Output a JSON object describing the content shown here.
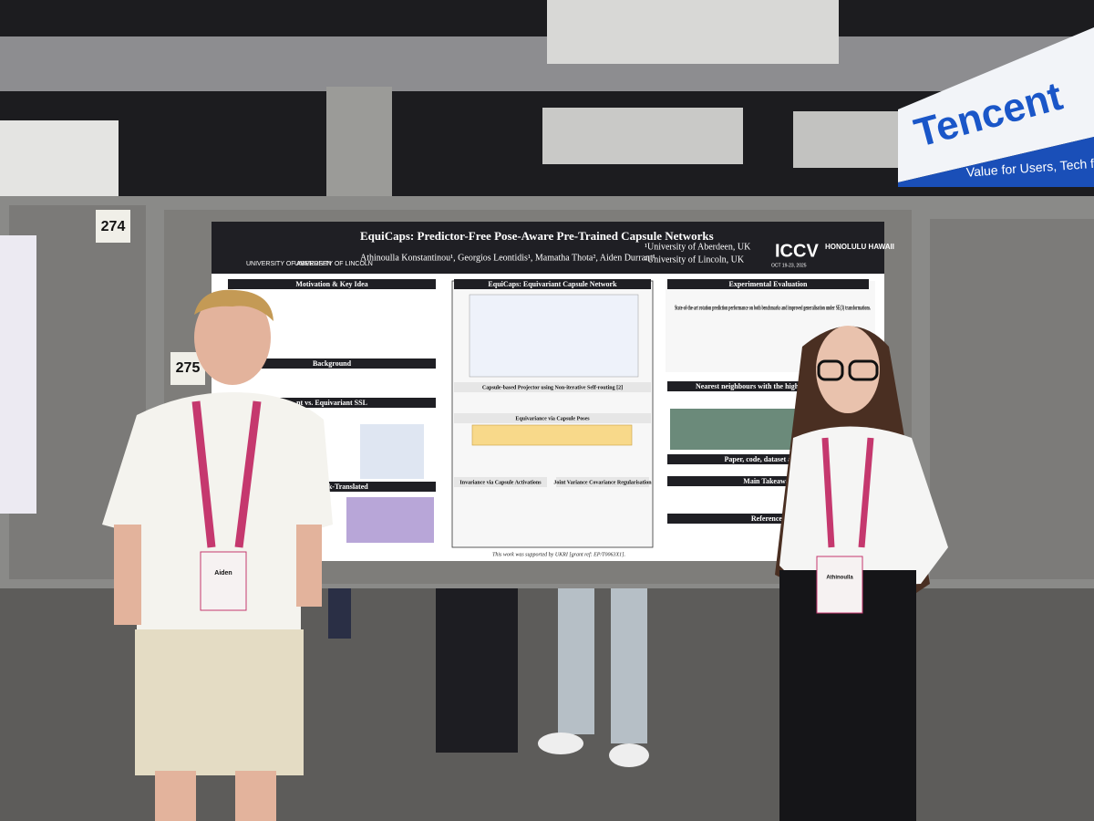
{
  "scene": {
    "sign": {
      "brand": "Tencent",
      "slogan": "Value for Users, Tech for Goo"
    },
    "booths": [
      "274",
      "275"
    ],
    "poster": {
      "title": "EquiCaps: Predictor-Free Pose-Aware Pre-Trained Capsule Networks",
      "authors": "Athinoulla Konstantinou¹, Georgios Leontidis¹, Mamatha Thota², Aiden Durrant¹",
      "affiliations": [
        "¹University of Aberdeen, UK",
        "²University of Lincoln, UK"
      ],
      "logos": [
        "UNIVERSITY OF ABERDEEN",
        "UNIVERSITY OF LINCOLN",
        "ICCV",
        "HONOLULU HAWAII",
        "OCT 19-23, 2025"
      ],
      "sections": {
        "left": [
          "Motivation & Key Idea",
          "Background",
          "nt vs. Equivariant SSL",
          "Benchmark-Translated"
        ],
        "middle": [
          "EquiCaps: Equivariant Capsule Network",
          "Capsule-based Projector using Non-iterative Self-routing [2]",
          "Equivariance via Capsule Poses",
          "Invariance via Capsule Activations",
          "Joint Variance Covariance Regularisation"
        ],
        "right": [
          "Experimental Evaluation",
          "Nearest neighbours with the highest pose consi",
          "Paper, code, dataset and pre",
          "Main Takeaway",
          "References"
        ]
      },
      "highlight": "State-of-the-art rotation prediction performance on both benchmarks and improved generalisation under SE(3) transformations.",
      "footer": "This work was supported by UKRI [grant ref: EP/T0063X1]."
    },
    "badges": [
      "Aiden",
      "Athinoulla"
    ]
  }
}
